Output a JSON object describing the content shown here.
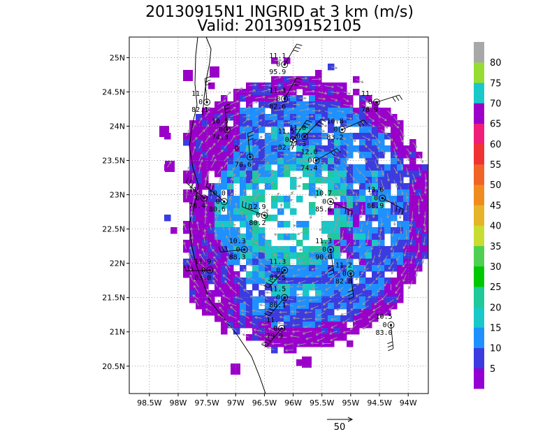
{
  "title_line1": "20130915N1 INGRID at 3 km (m/s)",
  "title_line2": "Valid: 201309152105",
  "map": {
    "lon_range": [
      -98.85,
      -93.65
    ],
    "lat_range": [
      20.1,
      25.3
    ],
    "lon_ticks": [
      {
        "value": -98.5,
        "label": "98.5W"
      },
      {
        "value": -98.0,
        "label": "98W"
      },
      {
        "value": -97.5,
        "label": "97.5W"
      },
      {
        "value": -97.0,
        "label": "97W"
      },
      {
        "value": -96.5,
        "label": "96.5W"
      },
      {
        "value": -96.0,
        "label": "96W"
      },
      {
        "value": -95.5,
        "label": "95.5W"
      },
      {
        "value": -95.0,
        "label": "95W"
      },
      {
        "value": -94.5,
        "label": "94.5W"
      },
      {
        "value": -94.0,
        "label": "94W"
      }
    ],
    "lat_ticks": [
      {
        "value": 25.0,
        "label": "25N"
      },
      {
        "value": 24.5,
        "label": "24.5N"
      },
      {
        "value": 24.0,
        "label": "24N"
      },
      {
        "value": 23.5,
        "label": "23.5N"
      },
      {
        "value": 23.0,
        "label": "23N"
      },
      {
        "value": 22.5,
        "label": "22.5N"
      },
      {
        "value": 22.0,
        "label": "22N"
      },
      {
        "value": 21.5,
        "label": "21.5N"
      },
      {
        "value": 21.0,
        "label": "21N"
      },
      {
        "value": 20.5,
        "label": "20.5N"
      }
    ],
    "grid": "dotted",
    "storm_center": {
      "lon": -96.0,
      "lat": 22.8
    }
  },
  "colorbar": {
    "bins": [
      {
        "label": "5",
        "color": "#9400d3"
      },
      {
        "label": "10",
        "color": "#3b3be0"
      },
      {
        "label": "15",
        "color": "#1e90ff"
      },
      {
        "label": "20",
        "color": "#19c8c8"
      },
      {
        "label": "25",
        "color": "#20c89a"
      },
      {
        "label": "30",
        "color": "#00c800"
      },
      {
        "label": "35",
        "color": "#50d050"
      },
      {
        "label": "40",
        "color": "#c8dc32"
      },
      {
        "label": "45",
        "color": "#e6b428"
      },
      {
        "label": "50",
        "color": "#f08c1e"
      },
      {
        "label": "55",
        "color": "#f06428"
      },
      {
        "label": "60",
        "color": "#f03232"
      },
      {
        "label": "65",
        "color": "#f01e78"
      },
      {
        "label": "70",
        "color": "#9b00c8"
      },
      {
        "label": "75",
        "color": "#19c8c8"
      },
      {
        "label": "80",
        "color": "#96dc32"
      },
      {
        "label": "",
        "color": "#a8a8a8"
      }
    ]
  },
  "stations": [
    {
      "lon": -96.15,
      "lat": 24.9,
      "v1": "11.1",
      "v2": "0",
      "v3": "95.9"
    },
    {
      "lon": -97.5,
      "lat": 24.35,
      "v1": "11.",
      "v2": "0",
      "v3": "82.1"
    },
    {
      "lon": -96.15,
      "lat": 24.4,
      "v1": "11.3",
      "v2": "0",
      "v3": "82.6"
    },
    {
      "lon": -94.55,
      "lat": 24.35,
      "v1": "11.",
      "v2": "0",
      "v3": "78.9"
    },
    {
      "lon": -97.15,
      "lat": 23.95,
      "v1": "10.5",
      "v2": "0",
      "v3": "74.3"
    },
    {
      "lon": -95.15,
      "lat": 23.95,
      "v1": "10.8",
      "v2": "0",
      "v3": "83.2"
    },
    {
      "lon": -95.8,
      "lat": 23.85,
      "v1": "11.0",
      "v2": "0",
      "v3": "77.3"
    },
    {
      "lon": -96.0,
      "lat": 23.8,
      "v1": "11.5",
      "v2": "0",
      "v3": "82.7"
    },
    {
      "lon": -96.75,
      "lat": 23.55,
      "v1": "D",
      "v2": "",
      "v3": "78.6"
    },
    {
      "lon": -95.6,
      "lat": 23.5,
      "v1": "12.0",
      "v2": "0",
      "v3": "74.4"
    },
    {
      "lon": -97.55,
      "lat": 22.95,
      "v1": "11.",
      "v2": "0",
      "v3": "78.4"
    },
    {
      "lon": -97.2,
      "lat": 22.9,
      "v1": "10.0",
      "v2": "0",
      "v3": "80.6"
    },
    {
      "lon": -94.45,
      "lat": 22.95,
      "v1": "13.6",
      "v2": "0",
      "v3": "86.9"
    },
    {
      "lon": -96.5,
      "lat": 22.7,
      "v1": "12.9",
      "v2": "0",
      "v3": "80.2"
    },
    {
      "lon": -95.35,
      "lat": 22.9,
      "v1": "10.7",
      "v2": "0",
      "v3": "85.6"
    },
    {
      "lon": -96.85,
      "lat": 22.2,
      "v1": "10.3",
      "v2": "0",
      "v3": "88.3"
    },
    {
      "lon": -95.35,
      "lat": 22.2,
      "v1": "11.3",
      "v2": "0",
      "v3": "90.0"
    },
    {
      "lon": -97.45,
      "lat": 21.9,
      "v1": "11.9",
      "v2": "0",
      "v3": "83.0"
    },
    {
      "lon": -96.15,
      "lat": 21.9,
      "v1": "11.3",
      "v2": "0",
      "v3": "83.5"
    },
    {
      "lon": -95.0,
      "lat": 21.85,
      "v1": "11.2",
      "v2": "0",
      "v3": "82.8"
    },
    {
      "lon": -96.15,
      "lat": 21.5,
      "v1": "11.5",
      "v2": "0",
      "v3": "80.1"
    },
    {
      "lon": -94.3,
      "lat": 21.1,
      "v1": "10.5",
      "v2": "0",
      "v3": "83.0"
    },
    {
      "lon": -96.2,
      "lat": 21.05,
      "v1": "11.",
      "v2": "0",
      "v3": "79.9"
    }
  ],
  "reference_vector_label": "50"
}
